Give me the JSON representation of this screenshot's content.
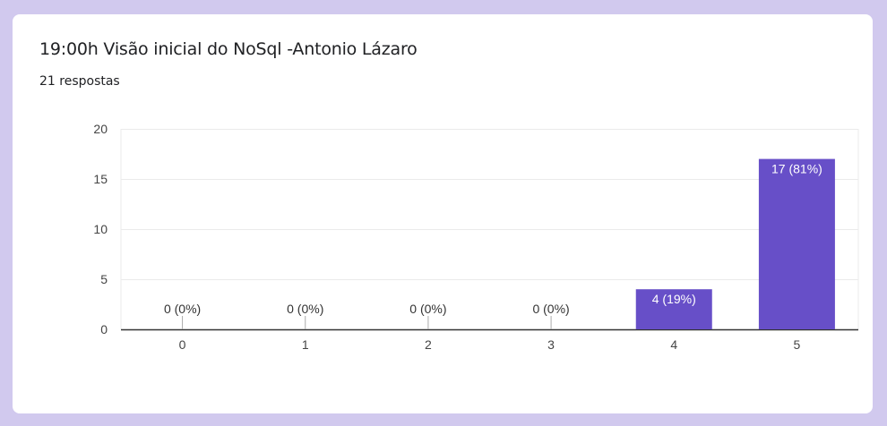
{
  "card": {
    "title": "19:00h Visão inicial do NoSql -Antonio Lázaro",
    "subtitle": "21 respostas"
  },
  "colors": {
    "background": "#d1c9ee",
    "bar": "#674fc8",
    "axis": "#333333",
    "grid": "#ebebeb",
    "text": "#202124",
    "label_inside": "#ffffff"
  },
  "chart_data": {
    "type": "bar",
    "title": "19:00h Visão inicial do NoSql -Antonio Lázaro",
    "categories": [
      "0",
      "1",
      "2",
      "3",
      "4",
      "5"
    ],
    "values": [
      0,
      0,
      0,
      0,
      4,
      17
    ],
    "data_labels": [
      "0 (0%)",
      "0 (0%)",
      "0 (0%)",
      "0 (0%)",
      "4 (19%)",
      "17 (81%)"
    ],
    "ylim": [
      0,
      20
    ],
    "yticks": [
      "0",
      "5",
      "10",
      "15",
      "20"
    ],
    "ytick_values": [
      0,
      5,
      10,
      15,
      20
    ],
    "grid": true,
    "legend": "none"
  }
}
